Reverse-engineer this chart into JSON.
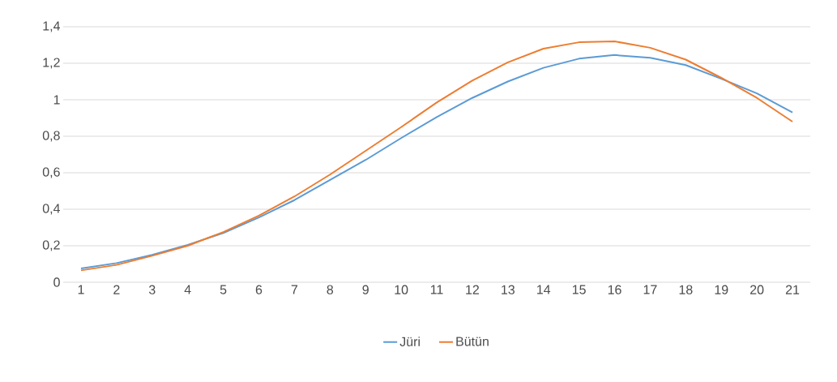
{
  "chart_data": {
    "type": "line",
    "categories": [
      "1",
      "2",
      "3",
      "4",
      "5",
      "6",
      "7",
      "8",
      "9",
      "10",
      "11",
      "12",
      "13",
      "14",
      "15",
      "16",
      "17",
      "18",
      "19",
      "20",
      "21"
    ],
    "series": [
      {
        "name": "Jüri",
        "color": "#5b9bd5",
        "values": [
          0.075,
          0.105,
          0.15,
          0.205,
          0.27,
          0.355,
          0.45,
          0.56,
          0.67,
          0.79,
          0.905,
          1.01,
          1.1,
          1.175,
          1.225,
          1.245,
          1.23,
          1.19,
          1.115,
          1.035,
          0.93
        ]
      },
      {
        "name": "Bütün",
        "color": "#ed7d31",
        "values": [
          0.065,
          0.095,
          0.145,
          0.2,
          0.275,
          0.365,
          0.47,
          0.59,
          0.72,
          0.85,
          0.985,
          1.105,
          1.205,
          1.28,
          1.315,
          1.32,
          1.285,
          1.22,
          1.12,
          1.01,
          0.88
        ]
      }
    ],
    "ylim": [
      0,
      1.4
    ],
    "yticks": [
      0,
      {
        "value": 0.2,
        "label": "0,2"
      },
      {
        "value": 0.4,
        "label": "0,4"
      },
      {
        "value": 0.6,
        "label": "0,6"
      },
      {
        "value": 0.8,
        "label": "0,8"
      },
      1,
      {
        "value": 1.2,
        "label": "1,2"
      },
      {
        "value": 1.4,
        "label": "1,4"
      }
    ],
    "grid": "y",
    "legend": "bottom",
    "marker": "none",
    "line_style": "solid"
  }
}
